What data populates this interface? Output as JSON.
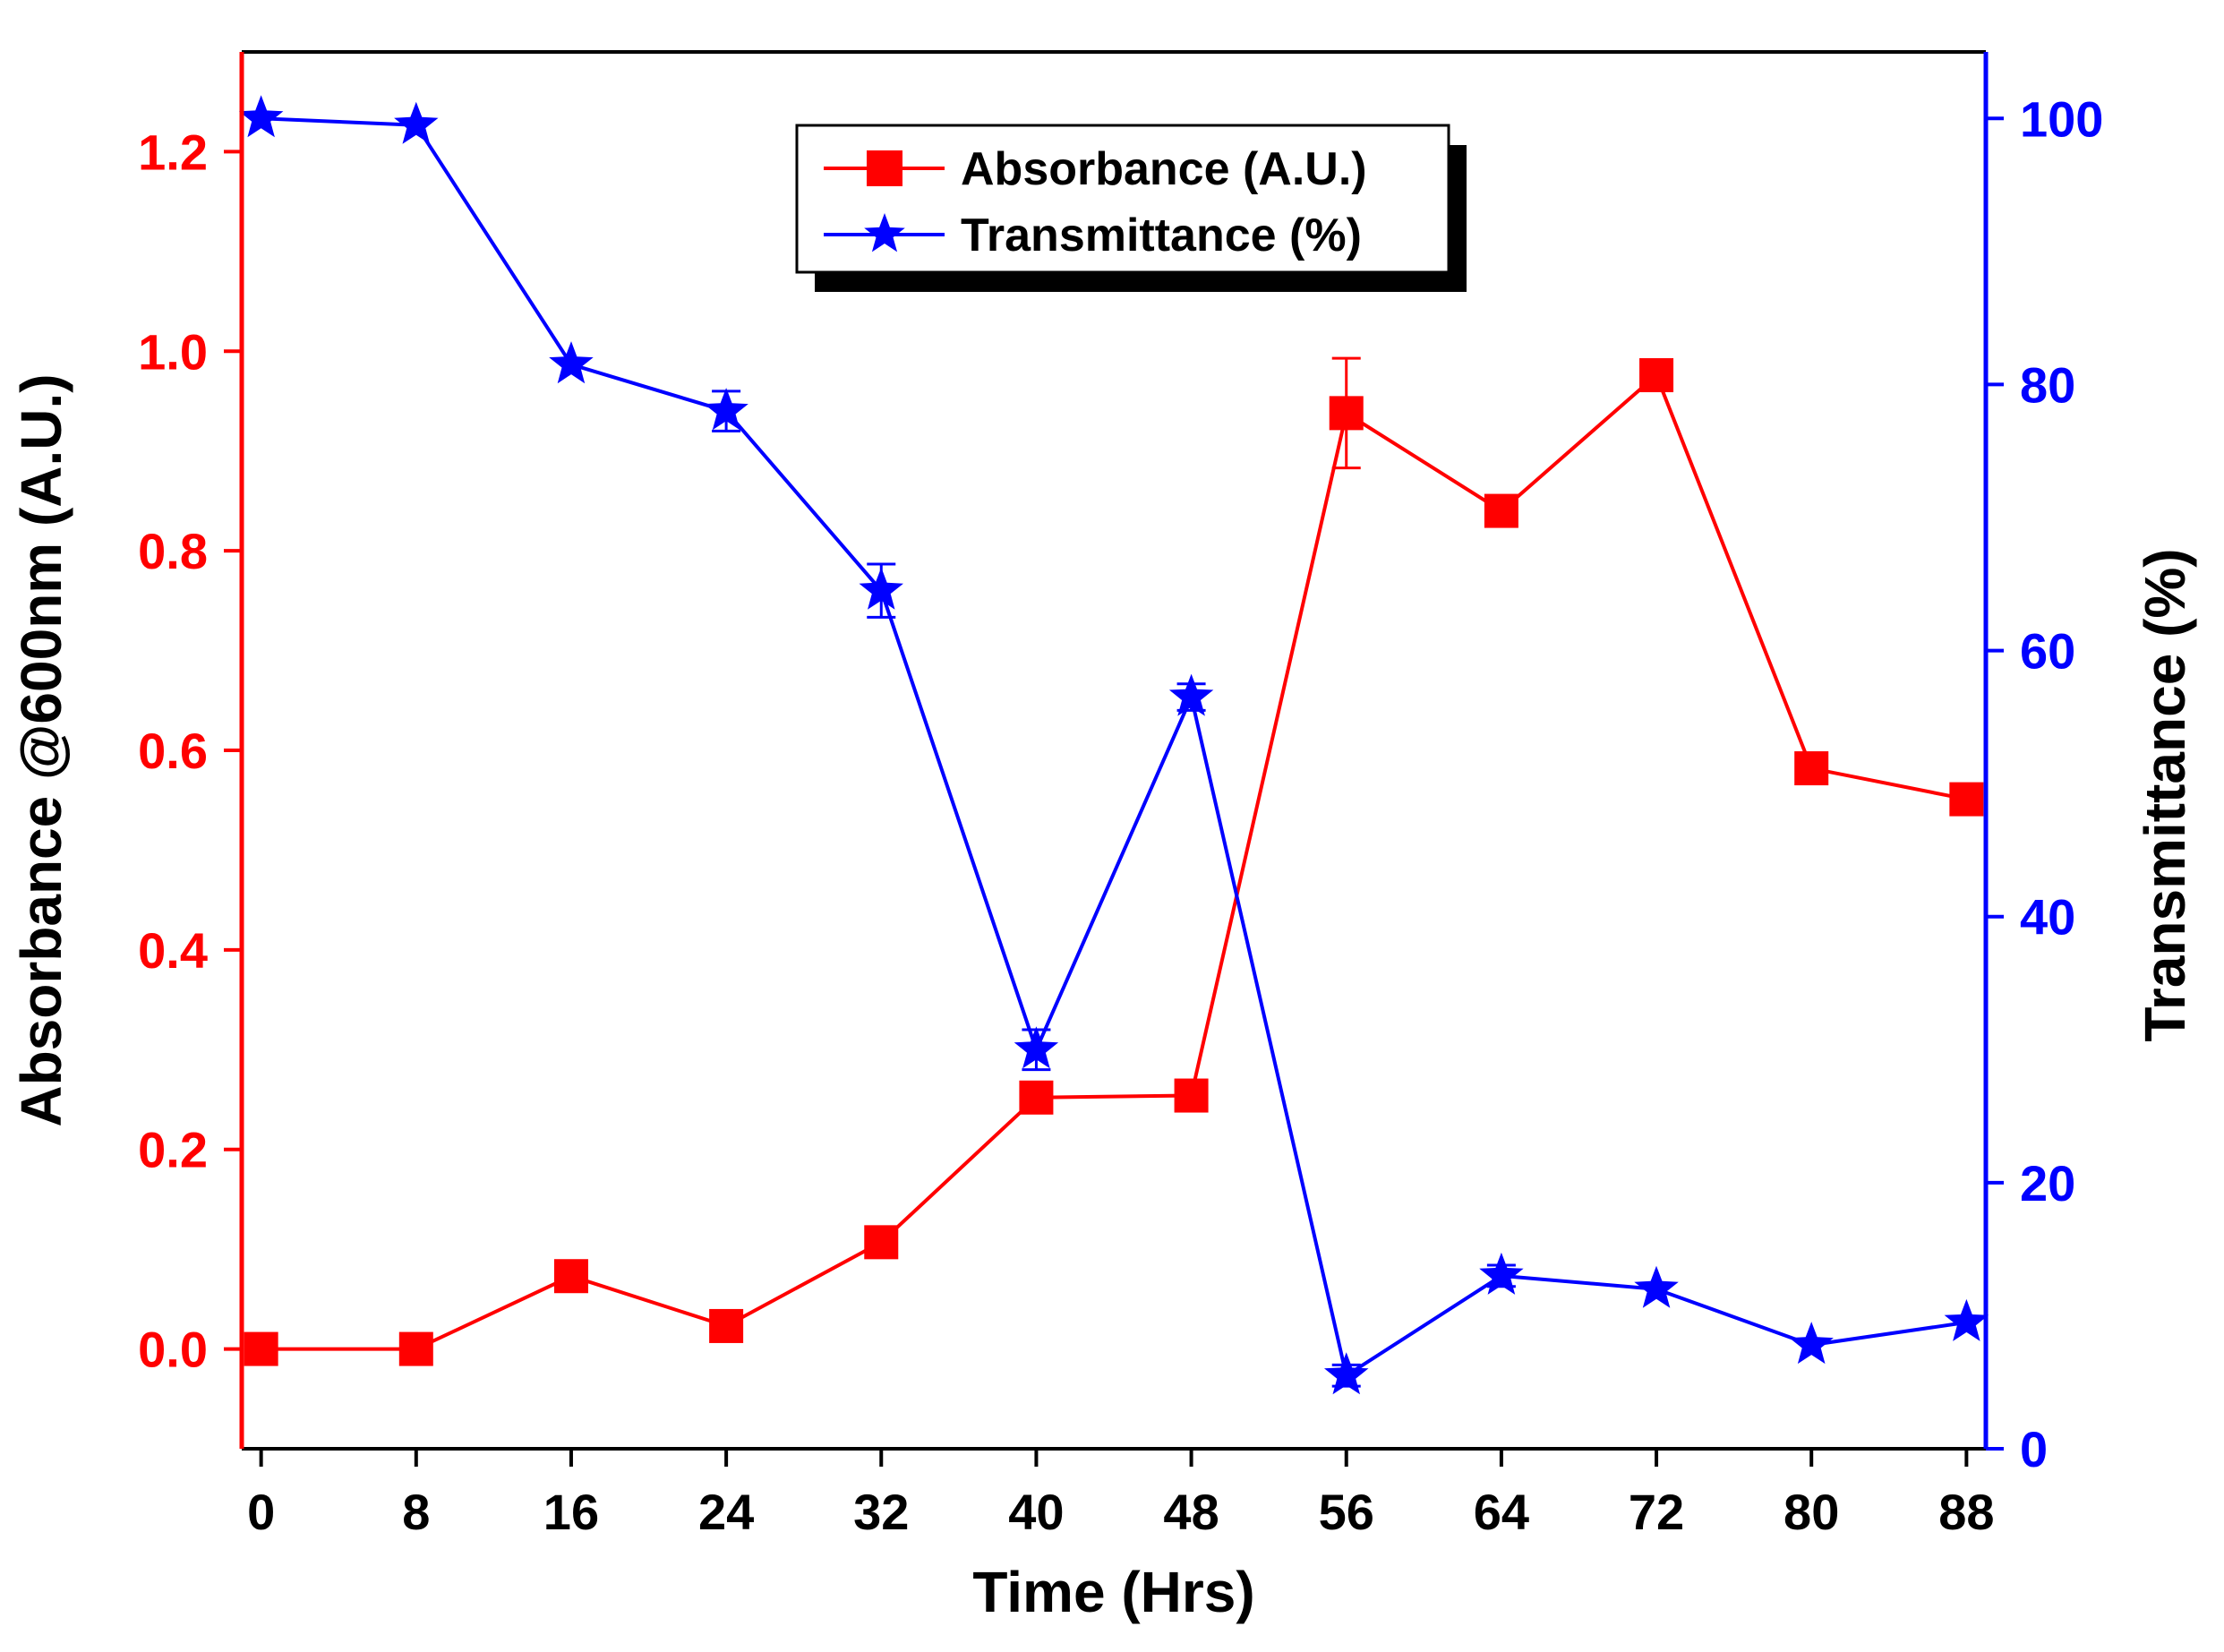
{
  "chart_data": {
    "type": "line",
    "title": "",
    "xlabel": "Time (Hrs)",
    "x": [
      0,
      8,
      16,
      24,
      32,
      40,
      48,
      56,
      64,
      72,
      80,
      88
    ],
    "xticks": [
      "0",
      "8",
      "16",
      "24",
      "32",
      "40",
      "48",
      "56",
      "64",
      "72",
      "80",
      "88"
    ],
    "xlim": [
      -1,
      89
    ],
    "y_left": {
      "label": "Absorbance @600nm (A.U.)",
      "ylim": [
        -0.1,
        1.3
      ],
      "ticks": [
        "0.0",
        "0.2",
        "0.4",
        "0.6",
        "0.8",
        "1.0",
        "1.2"
      ],
      "tick_values": [
        0.0,
        0.2,
        0.4,
        0.6,
        0.8,
        1.0,
        1.2
      ],
      "color": "#ff0000"
    },
    "y_right": {
      "label": "Transmittance (%)",
      "ylim": [
        0,
        105
      ],
      "ticks": [
        "0",
        "20",
        "40",
        "60",
        "80",
        "100"
      ],
      "tick_values": [
        0,
        20,
        40,
        60,
        80,
        100
      ],
      "color": "#0000ff"
    },
    "series": [
      {
        "name": "Absorbance (A.U.)",
        "axis": "left",
        "marker": "square",
        "color": "#ff0000",
        "values": [
          0.0,
          0.0,
          0.073,
          0.023,
          0.107,
          0.252,
          0.254,
          0.938,
          0.84,
          0.976,
          0.582,
          0.551
        ],
        "errors": [
          0.0,
          0.0,
          0.0,
          0.0,
          0.0,
          0.0,
          0.0,
          0.055,
          0.0,
          0.0,
          0.0,
          0.012
        ]
      },
      {
        "name": "Transmittance (%)",
        "axis": "right",
        "marker": "star",
        "color": "#0000ff",
        "values": [
          100.0,
          99.5,
          81.5,
          78.0,
          64.5,
          30.0,
          56.5,
          5.5,
          13.0,
          12.0,
          7.8,
          9.5
        ],
        "errors": [
          0.0,
          0.0,
          0.0,
          1.5,
          2.0,
          1.5,
          1.0,
          0.8,
          0.8,
          0.0,
          0.0,
          0.0
        ]
      }
    ],
    "legend": {
      "position": "top-center",
      "entries": [
        "Absorbance (A.U.)",
        "Transmittance (%)"
      ]
    },
    "grid": false
  }
}
